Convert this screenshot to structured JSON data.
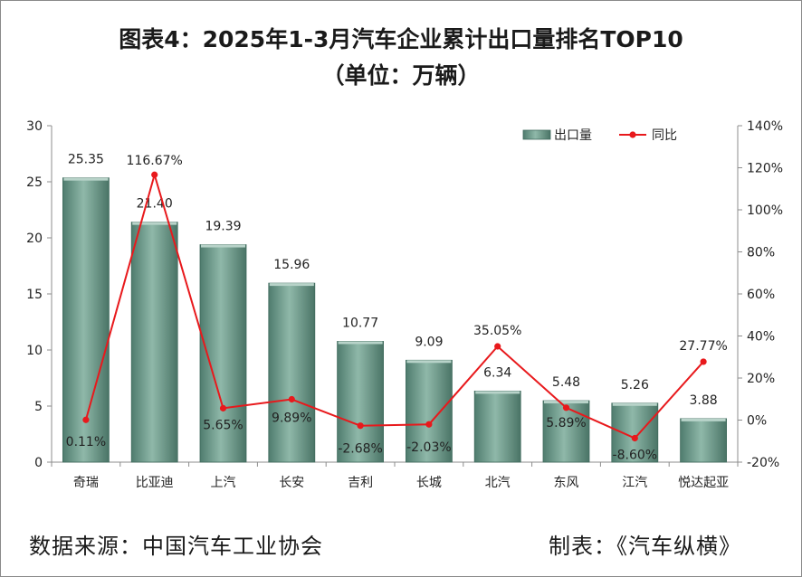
{
  "title_line1": "图表4：2025年1-3月汽车企业累计出口量排名TOP10",
  "title_line2": "（单位：万辆）",
  "source_text": "数据来源：中国汽车工业协会",
  "maker_text": "制表：《汽车纵横》",
  "colors": {
    "bar": "#7fa99a",
    "bar_edge": "#3f6a5d",
    "line": "#e8191c",
    "grid": "#bfbfbf"
  },
  "chart_data": {
    "type": "bar",
    "categories": [
      "奇瑞",
      "比亚迪",
      "上汽",
      "长安",
      "吉利",
      "长城",
      "北汽",
      "东风",
      "江汽",
      "悦达起亚"
    ],
    "series": [
      {
        "name": "出口量",
        "type": "bar",
        "axis": "left",
        "values": [
          25.35,
          21.4,
          19.39,
          15.96,
          10.77,
          9.09,
          6.34,
          5.48,
          5.26,
          3.88
        ],
        "labels": [
          "25.35",
          "21.40",
          "19.39",
          "15.96",
          "10.77",
          "9.09",
          "6.34",
          "5.48",
          "5.26",
          "3.88"
        ]
      },
      {
        "name": "同比",
        "type": "line",
        "axis": "right",
        "values": [
          0.11,
          116.67,
          5.65,
          9.89,
          -2.68,
          -2.03,
          35.05,
          5.89,
          -8.6,
          27.77
        ],
        "labels": [
          "0.11%",
          "116.67%",
          "5.65%",
          "9.89%",
          "-2.68%",
          "-2.03%",
          "35.05%",
          "5.89%",
          "-8.60%",
          "27.77%"
        ]
      }
    ],
    "y_left": {
      "min": 0,
      "max": 30,
      "ticks": [
        "0",
        "5",
        "10",
        "15",
        "20",
        "25",
        "30"
      ]
    },
    "y_right": {
      "min": -20,
      "max": 140,
      "ticks": [
        "-20%",
        "0%",
        "20%",
        "40%",
        "60%",
        "80%",
        "100%",
        "120%",
        "140%"
      ]
    },
    "legend": [
      "出口量",
      "同比"
    ],
    "legend_position": "top-right",
    "grid": false
  }
}
